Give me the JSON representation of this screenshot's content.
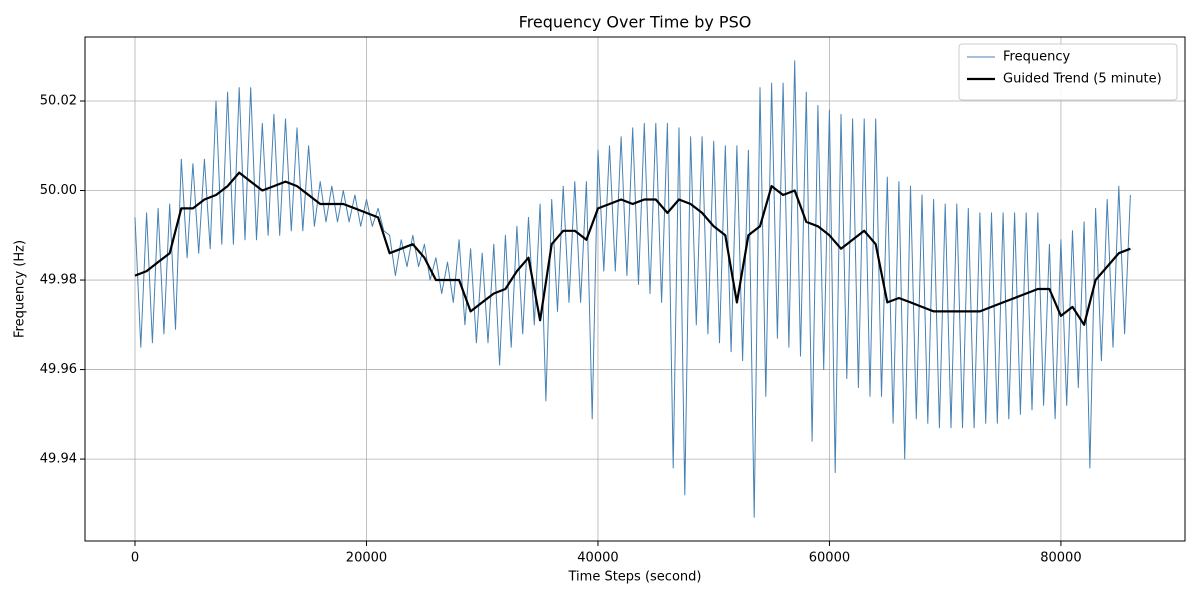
{
  "chart_data": {
    "type": "line",
    "title": "Frequency Over Time by PSO",
    "x_label": "Time Steps (second)",
    "y_label": "Frequency (Hz)",
    "xlim": [
      -4320,
      90720
    ],
    "ylim": [
      49.9217,
      50.0343
    ],
    "xticks": [
      0,
      20000,
      40000,
      60000,
      80000
    ],
    "yticks": [
      49.94,
      49.96,
      49.98,
      {
        "value": 50,
        "label": "50.00"
      },
      50.02
    ],
    "grid": true,
    "legend": "upper right",
    "series": [
      {
        "name": "Frequency",
        "color": "#4682b4",
        "x": [
          0,
          500,
          1000,
          1500,
          2000,
          2500,
          3000,
          3500,
          4000,
          4500,
          5000,
          5500,
          6000,
          6500,
          7000,
          7500,
          8000,
          8500,
          9000,
          9500,
          10000,
          10500,
          11000,
          11500,
          12000,
          12500,
          13000,
          13500,
          14000,
          14500,
          15000,
          15500,
          16000,
          16500,
          17000,
          17500,
          18000,
          18500,
          19000,
          19500,
          20000,
          20500,
          21000,
          21500,
          22000,
          22500,
          23000,
          23500,
          24000,
          24500,
          25000,
          25500,
          26000,
          26500,
          27000,
          27500,
          28000,
          28500,
          29000,
          29500,
          30000,
          30500,
          31000,
          31500,
          32000,
          32500,
          33000,
          33500,
          34000,
          34500,
          35000,
          35500,
          36000,
          36500,
          37000,
          37500,
          38000,
          38500,
          39000,
          39500,
          40000,
          40500,
          41000,
          41500,
          42000,
          42500,
          43000,
          43500,
          44000,
          44500,
          45000,
          45500,
          46000,
          46500,
          47000,
          47500,
          48000,
          48500,
          49000,
          49500,
          50000,
          50500,
          51000,
          51500,
          52000,
          52500,
          53000,
          53500,
          54000,
          54500,
          55000,
          55500,
          56000,
          56500,
          57000,
          57500,
          58000,
          58500,
          59000,
          59500,
          60000,
          60500,
          61000,
          61500,
          62000,
          62500,
          63000,
          63500,
          64000,
          64500,
          65000,
          65500,
          66000,
          66500,
          67000,
          67500,
          68000,
          68500,
          69000,
          69500,
          70000,
          70500,
          71000,
          71500,
          72000,
          72500,
          73000,
          73500,
          74000,
          74500,
          75000,
          75500,
          76000,
          76500,
          77000,
          77500,
          78000,
          78500,
          79000,
          79500,
          80000,
          80500,
          81000,
          81500,
          82000,
          82500,
          83000,
          83500,
          84000,
          84500,
          85000,
          85500,
          86000
        ],
        "values": [
          49.994,
          49.965,
          49.995,
          49.966,
          49.996,
          49.968,
          49.997,
          49.969,
          50.007,
          49.985,
          50.006,
          49.986,
          50.007,
          49.987,
          50.02,
          49.988,
          50.022,
          49.988,
          50.023,
          49.989,
          50.023,
          49.989,
          50.015,
          49.99,
          50.017,
          49.99,
          50.016,
          49.991,
          50.014,
          49.991,
          50.01,
          49.992,
          50.002,
          49.993,
          50.001,
          49.993,
          50,
          49.993,
          49.999,
          49.992,
          49.998,
          49.992,
          49.996,
          49.991,
          49.99,
          49.981,
          49.989,
          49.983,
          49.99,
          49.983,
          49.988,
          49.98,
          49.985,
          49.977,
          49.984,
          49.975,
          49.989,
          49.97,
          49.987,
          49.966,
          49.986,
          49.966,
          49.988,
          49.961,
          49.99,
          49.965,
          49.992,
          49.968,
          49.994,
          49.97,
          49.997,
          49.953,
          49.998,
          49.973,
          50.001,
          49.975,
          50.002,
          49.975,
          50.002,
          49.949,
          50.009,
          49.982,
          50.01,
          49.982,
          50.012,
          49.981,
          50.014,
          49.979,
          50.015,
          49.977,
          50.015,
          49.975,
          50.015,
          49.938,
          50.014,
          49.932,
          50.012,
          49.97,
          50.012,
          49.968,
          50.011,
          49.966,
          50.01,
          49.964,
          50.01,
          49.962,
          50.009,
          49.927,
          50.023,
          49.954,
          50.024,
          49.967,
          50.024,
          49.965,
          50.029,
          49.963,
          50.022,
          49.944,
          50.019,
          49.96,
          50.018,
          49.937,
          50.017,
          49.958,
          50.016,
          49.956,
          50.016,
          49.954,
          50.016,
          49.954,
          50.003,
          49.948,
          50.002,
          49.94,
          50.001,
          49.949,
          49.999,
          49.948,
          49.998,
          49.947,
          49.997,
          49.947,
          49.997,
          49.947,
          49.996,
          49.947,
          49.995,
          49.948,
          49.995,
          49.948,
          49.995,
          49.949,
          49.995,
          49.95,
          49.995,
          49.951,
          49.995,
          49.952,
          49.988,
          49.949,
          49.989,
          49.952,
          49.991,
          49.956,
          49.993,
          49.938,
          49.996,
          49.962,
          49.998,
          49.965,
          50.001,
          49.968,
          49.999
        ]
      },
      {
        "name": "Guided Trend (5 minute)",
        "color": "#000000",
        "x": [
          0,
          1000,
          2000,
          3000,
          4000,
          5000,
          6000,
          7000,
          8000,
          9000,
          10000,
          11000,
          12000,
          13000,
          14000,
          15000,
          16000,
          17000,
          18000,
          19000,
          20000,
          21000,
          22000,
          23000,
          24000,
          25000,
          26000,
          27000,
          28000,
          29000,
          30000,
          31000,
          32000,
          33000,
          34000,
          35000,
          36000,
          37000,
          38000,
          39000,
          40000,
          41000,
          42000,
          43000,
          44000,
          45000,
          46000,
          47000,
          48000,
          49000,
          50000,
          51000,
          52000,
          53000,
          54000,
          55000,
          56000,
          57000,
          58000,
          59000,
          60000,
          61000,
          62000,
          63000,
          64000,
          65000,
          66000,
          67000,
          68000,
          69000,
          70000,
          71000,
          72000,
          73000,
          74000,
          75000,
          76000,
          77000,
          78000,
          79000,
          80000,
          81000,
          82000,
          83000,
          84000,
          85000,
          86000
        ],
        "values": [
          49.981,
          49.982,
          49.984,
          49.986,
          49.996,
          49.996,
          49.998,
          49.999,
          50.001,
          50.004,
          50.002,
          50,
          50.001,
          50.002,
          50.001,
          49.999,
          49.997,
          49.997,
          49.997,
          49.996,
          49.995,
          49.994,
          49.986,
          49.987,
          49.988,
          49.985,
          49.98,
          49.98,
          49.98,
          49.973,
          49.975,
          49.977,
          49.978,
          49.982,
          49.985,
          49.971,
          49.988,
          49.991,
          49.991,
          49.989,
          49.996,
          49.997,
          49.998,
          49.997,
          49.998,
          49.998,
          49.995,
          49.998,
          49.997,
          49.995,
          49.992,
          49.99,
          49.975,
          49.99,
          49.992,
          50.001,
          49.999,
          50,
          49.993,
          49.992,
          49.99,
          49.987,
          49.989,
          49.991,
          49.988,
          49.975,
          49.976,
          49.975,
          49.974,
          49.973,
          49.973,
          49.973,
          49.973,
          49.973,
          49.974,
          49.975,
          49.976,
          49.977,
          49.978,
          49.978,
          49.972,
          49.974,
          49.97,
          49.98,
          49.983,
          49.986,
          49.987
        ]
      }
    ]
  }
}
